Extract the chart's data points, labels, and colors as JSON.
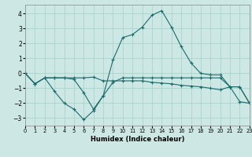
{
  "xlabel": "Humidex (Indice chaleur)",
  "background_color": "#cde8e4",
  "grid_color": "#aad4ce",
  "line_color": "#1a6b6b",
  "xlim": [
    0,
    23
  ],
  "ylim": [
    -3.5,
    4.6
  ],
  "yticks": [
    -3,
    -2,
    -1,
    0,
    1,
    2,
    3,
    4
  ],
  "xticks": [
    0,
    1,
    2,
    3,
    4,
    5,
    6,
    7,
    8,
    9,
    10,
    11,
    12,
    13,
    14,
    15,
    16,
    17,
    18,
    19,
    20,
    21,
    22,
    23
  ],
  "line1_x": [
    0,
    1,
    2,
    3,
    4,
    5,
    6,
    7,
    8,
    9,
    10,
    11,
    12,
    13,
    14,
    15,
    16,
    17,
    18,
    19,
    20,
    21,
    22,
    23
  ],
  "line1_y": [
    0.0,
    -0.7,
    -0.3,
    -0.3,
    -0.3,
    -0.3,
    -0.3,
    -0.25,
    -0.5,
    -0.5,
    -0.5,
    -0.5,
    -0.5,
    -0.6,
    -0.65,
    -0.7,
    -0.8,
    -0.85,
    -0.9,
    -1.0,
    -1.1,
    -0.9,
    -0.9,
    -2.0
  ],
  "line2_x": [
    0,
    1,
    2,
    3,
    4,
    5,
    6,
    7,
    8,
    9,
    10,
    11,
    12,
    13,
    14,
    15,
    16,
    17,
    18,
    19,
    20,
    21,
    22,
    23
  ],
  "line2_y": [
    0.0,
    -0.7,
    -0.3,
    -1.2,
    -2.0,
    -2.4,
    -3.1,
    -2.5,
    -1.5,
    -0.6,
    -0.3,
    -0.3,
    -0.3,
    -0.3,
    -0.3,
    -0.3,
    -0.3,
    -0.3,
    -0.3,
    -0.3,
    -0.3,
    -0.9,
    -0.9,
    -2.0
  ],
  "line3_x": [
    0,
    1,
    2,
    3,
    4,
    5,
    6,
    7,
    8,
    9,
    10,
    11,
    12,
    13,
    14,
    15,
    16,
    17,
    18,
    19,
    20,
    21,
    22,
    23
  ],
  "line3_y": [
    0.0,
    -0.7,
    -0.3,
    -0.3,
    -0.3,
    -0.4,
    -1.3,
    -2.4,
    -1.5,
    0.9,
    2.4,
    2.6,
    3.1,
    3.9,
    4.2,
    3.1,
    1.8,
    0.7,
    0.0,
    -0.1,
    -0.1,
    -0.9,
    -1.9,
    -2.0
  ]
}
